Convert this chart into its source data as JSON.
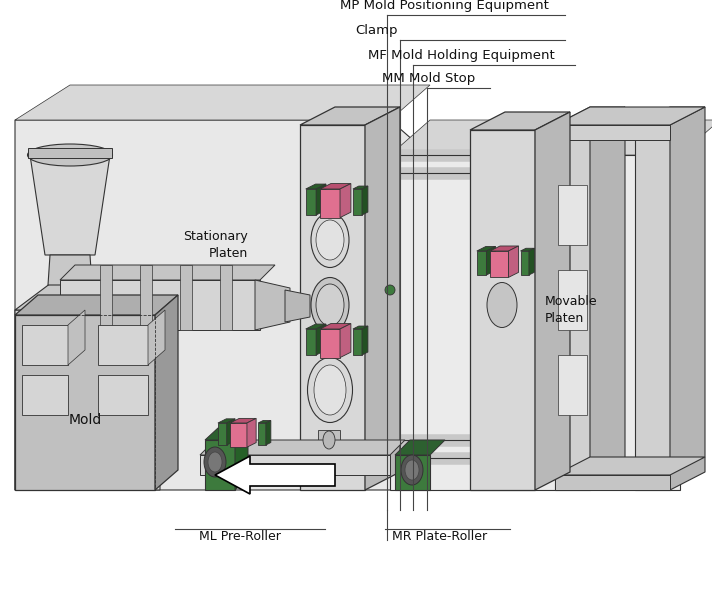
{
  "bg_color": "#ffffff",
  "labels": {
    "MP": "MP Mold Positioning Equipment",
    "Clamp": "Clamp",
    "MF": "MF Mold Holding Equipment",
    "MM": "MM Mold Stop",
    "Stationary": "Stationary\nPlaten",
    "Movable": "Movable\nPlaten",
    "Mold": "Mold",
    "ML": "ML Pre-Roller",
    "MR": "MR Plate-Roller"
  },
  "lc": "#d0d0d0",
  "mc": "#b0b0b0",
  "dc": "#888888",
  "gc": "#3d7a3d",
  "pc": "#e07090",
  "edge": "#333333",
  "figure_width": 7.12,
  "figure_height": 5.95
}
